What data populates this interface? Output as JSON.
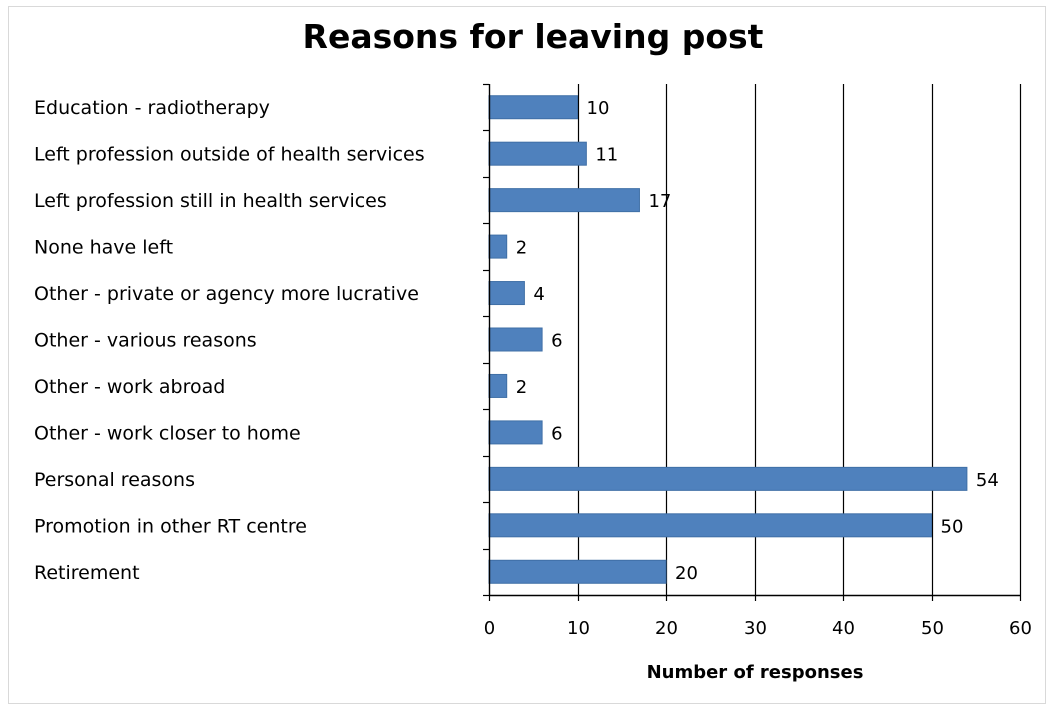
{
  "chart_data": {
    "type": "bar",
    "orientation": "horizontal",
    "title": "Reasons for leaving post",
    "xlabel": "Number of responses",
    "ylabel": "",
    "categories": [
      "Education - radiotherapy",
      "Left profession outside of health services",
      "Left profession still in health services",
      "None have left",
      "Other - private or agency more lucrative",
      "Other - various reasons",
      "Other - work abroad",
      "Other - work closer to home",
      "Personal reasons",
      "Promotion in other RT centre",
      "Retirement"
    ],
    "values": [
      10,
      11,
      17,
      2,
      4,
      6,
      2,
      6,
      54,
      50,
      20
    ],
    "xlim": [
      0,
      60
    ],
    "xticks": [
      0,
      10,
      20,
      30,
      40,
      50,
      60
    ],
    "grid": "vertical major gridlines",
    "legend": "none",
    "bar_color": "#4f81bd",
    "bar_border_color": "#3f6fa6",
    "gridline_color": "#000000"
  }
}
